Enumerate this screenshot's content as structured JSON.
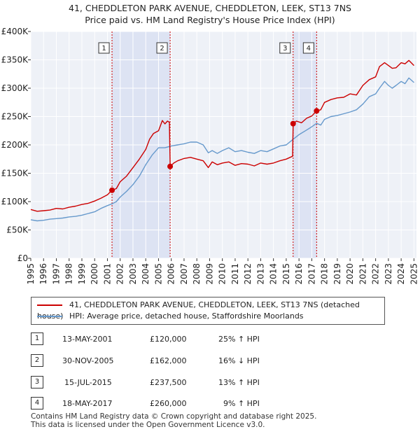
{
  "header": {
    "title_line1": "41, CHEDDLETON PARK AVENUE, CHEDDLETON, LEEK, ST13 7NS",
    "title_line2": "Price paid vs. HM Land Registry's House Price Index (HPI)"
  },
  "chart_data": {
    "type": "line",
    "title": "41, CHEDDLETON PARK AVENUE, CHEDDLETON, LEEK, ST13 7NS — Price paid vs. HM Land Registry's House Price Index (HPI)",
    "xlim": [
      1995,
      2025.2
    ],
    "ylim": [
      0,
      400000
    ],
    "y_ticks": [
      0,
      50000,
      100000,
      150000,
      200000,
      250000,
      300000,
      350000,
      400000
    ],
    "y_tick_labels": [
      "£0",
      "£50K",
      "£100K",
      "£150K",
      "£200K",
      "£250K",
      "£300K",
      "£350K",
      "£400K"
    ],
    "x_ticks": [
      1995,
      1996,
      1997,
      1998,
      1999,
      2000,
      2001,
      2002,
      2003,
      2004,
      2005,
      2006,
      2007,
      2008,
      2009,
      2010,
      2011,
      2012,
      2013,
      2014,
      2015,
      2016,
      2017,
      2018,
      2019,
      2020,
      2021,
      2022,
      2023,
      2024,
      2025
    ],
    "grid": true,
    "shaded_periods": [
      [
        2001.36,
        2005.91
      ],
      [
        2015.54,
        2017.38
      ]
    ],
    "series": [
      {
        "name": "41, CHEDDLETON PARK AVENUE, CHEDDLETON, LEEK, ST13 7NS (detached house)",
        "color": "#cc0000",
        "x": [
          1995.0,
          1995.5,
          1996.0,
          1996.5,
          1997.0,
          1997.5,
          1998.0,
          1998.5,
          1999.0,
          1999.5,
          2000.0,
          2000.5,
          2001.0,
          2001.36,
          2001.7,
          2002.0,
          2002.5,
          2003.0,
          2003.5,
          2004.0,
          2004.3,
          2004.6,
          2005.0,
          2005.3,
          2005.5,
          2005.7,
          2005.85,
          2005.91,
          2006.2,
          2006.5,
          2007.0,
          2007.5,
          2008.0,
          2008.5,
          2008.9,
          2009.2,
          2009.6,
          2010.0,
          2010.5,
          2011.0,
          2011.5,
          2012.0,
          2012.5,
          2013.0,
          2013.5,
          2014.0,
          2014.5,
          2015.0,
          2015.5,
          2015.54,
          2015.8,
          2016.2,
          2016.6,
          2017.0,
          2017.38,
          2017.7,
          2018.0,
          2018.5,
          2019.0,
          2019.5,
          2020.0,
          2020.5,
          2021.0,
          2021.5,
          2022.0,
          2022.3,
          2022.7,
          2023.0,
          2023.3,
          2023.6,
          2024.0,
          2024.3,
          2024.6,
          2025.0
        ],
        "values": [
          86000,
          83000,
          84000,
          85000,
          88000,
          87000,
          90000,
          92000,
          95000,
          97000,
          101000,
          106000,
          112000,
          120000,
          123000,
          135000,
          145000,
          160000,
          175000,
          192000,
          210000,
          220000,
          225000,
          243000,
          237000,
          242000,
          240000,
          162000,
          168000,
          172000,
          176000,
          178000,
          175000,
          172000,
          160000,
          170000,
          165000,
          168000,
          170000,
          164000,
          167000,
          166000,
          163000,
          168000,
          166000,
          168000,
          172000,
          175000,
          180000,
          237500,
          242000,
          239000,
          247000,
          251000,
          260000,
          262000,
          275000,
          280000,
          283000,
          284000,
          290000,
          288000,
          305000,
          315000,
          320000,
          338000,
          345000,
          340000,
          335000,
          336000,
          345000,
          343000,
          349000,
          340000
        ]
      },
      {
        "name": "HPI: Average price, detached house, Staffordshire Moorlands",
        "color": "#6699cc",
        "x": [
          1995.0,
          1995.5,
          1996.0,
          1996.5,
          1997.0,
          1997.5,
          1998.0,
          1998.5,
          1999.0,
          1999.5,
          2000.0,
          2000.5,
          2001.0,
          2001.36,
          2001.7,
          2002.0,
          2002.5,
          2003.0,
          2003.5,
          2004.0,
          2004.5,
          2005.0,
          2005.5,
          2006.0,
          2006.5,
          2007.0,
          2007.5,
          2008.0,
          2008.5,
          2008.9,
          2009.2,
          2009.6,
          2010.0,
          2010.5,
          2011.0,
          2011.5,
          2012.0,
          2012.5,
          2013.0,
          2013.5,
          2014.0,
          2014.5,
          2015.0,
          2015.54,
          2016.0,
          2016.5,
          2017.0,
          2017.38,
          2017.7,
          2018.0,
          2018.5,
          2019.0,
          2019.5,
          2020.0,
          2020.5,
          2021.0,
          2021.5,
          2022.0,
          2022.3,
          2022.7,
          2023.0,
          2023.3,
          2023.6,
          2024.0,
          2024.3,
          2024.6,
          2025.0
        ],
        "values": [
          68000,
          66000,
          67000,
          69000,
          70000,
          71000,
          73000,
          74000,
          76000,
          79000,
          82000,
          88000,
          93000,
          96000,
          100000,
          108000,
          118000,
          130000,
          145000,
          165000,
          182000,
          195000,
          195000,
          198000,
          200000,
          202000,
          205000,
          205000,
          200000,
          186000,
          190000,
          185000,
          190000,
          195000,
          188000,
          190000,
          187000,
          185000,
          190000,
          188000,
          193000,
          198000,
          200000,
          210000,
          218000,
          225000,
          232000,
          238000,
          235000,
          245000,
          250000,
          252000,
          255000,
          258000,
          262000,
          272000,
          285000,
          290000,
          300000,
          312000,
          305000,
          300000,
          305000,
          312000,
          308000,
          318000,
          310000
        ]
      }
    ],
    "sales": [
      {
        "label": "1",
        "x": 2001.36,
        "value": 120000
      },
      {
        "label": "2",
        "x": 2005.91,
        "value": 162000
      },
      {
        "label": "3",
        "x": 2015.54,
        "value": 237500
      },
      {
        "label": "4",
        "x": 2017.38,
        "value": 260000
      }
    ]
  },
  "legend": {
    "property_label": "41, CHEDDLETON PARK AVENUE, CHEDDLETON, LEEK, ST13 7NS (detached house)",
    "hpi_label": "HPI: Average price, detached house, Staffordshire Moorlands",
    "property_color": "#cc0000",
    "hpi_color": "#6699cc"
  },
  "sales_table": [
    {
      "num": "1",
      "date": "13-MAY-2001",
      "price": "£120,000",
      "hpi": "25% ↑ HPI"
    },
    {
      "num": "2",
      "date": "30-NOV-2005",
      "price": "£162,000",
      "hpi": "16% ↓ HPI"
    },
    {
      "num": "3",
      "date": "15-JUL-2015",
      "price": "£237,500",
      "hpi": "13% ↑ HPI"
    },
    {
      "num": "4",
      "date": "18-MAY-2017",
      "price": "£260,000",
      "hpi": "9% ↑ HPI"
    }
  ],
  "footer": {
    "line1": "Contains HM Land Registry data © Crown copyright and database right 2025.",
    "line2": "This data is licensed under the Open Government Licence v3.0."
  }
}
